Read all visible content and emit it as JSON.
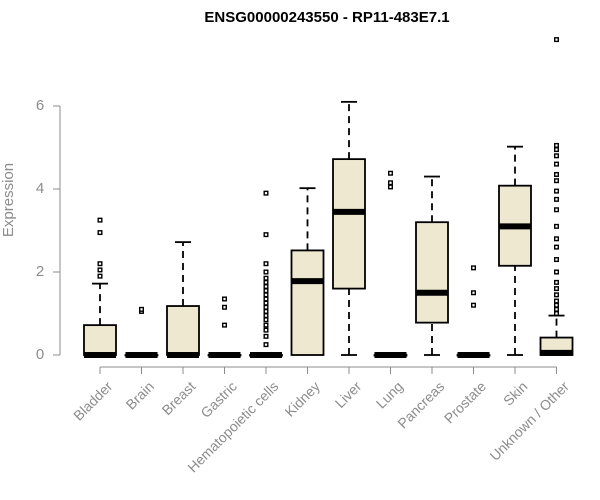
{
  "chart_data": {
    "type": "boxplot",
    "title": "ENSG00000243550 - RP11-483E7.1",
    "xlabel": "",
    "ylabel": "Expression",
    "ylim": [
      0,
      7.7
    ],
    "yticks": [
      0,
      2,
      4,
      6
    ],
    "box_fill": "#efe8d0",
    "box_stroke": "#000000",
    "categories": [
      "Bladder",
      "Brain",
      "Breast",
      "Gastric",
      "Hematopoietic cells",
      "Kidney",
      "Liver",
      "Lung",
      "Pancreas",
      "Prostate",
      "Skin",
      "Unknown / Other"
    ],
    "boxes": [
      {
        "q1": 0,
        "median": 0,
        "q3": 0.72,
        "whisker_low": 0,
        "whisker_high": 1.72,
        "outliers": [
          1.9,
          2.05,
          2.2,
          2.95,
          3.25
        ]
      },
      {
        "q1": 0,
        "median": 0,
        "q3": 0,
        "whisker_low": 0,
        "whisker_high": 0,
        "outliers": [
          1.05,
          1.1
        ]
      },
      {
        "q1": 0,
        "median": 0,
        "q3": 1.18,
        "whisker_low": 0,
        "whisker_high": 2.72,
        "outliers": []
      },
      {
        "q1": 0,
        "median": 0,
        "q3": 0,
        "whisker_low": 0,
        "whisker_high": 0,
        "outliers": [
          0.72,
          1.15,
          1.35
        ]
      },
      {
        "q1": 0,
        "median": 0,
        "q3": 0,
        "whisker_low": 0,
        "whisker_high": 0,
        "outliers": [
          0.25,
          0.45,
          0.6,
          0.72,
          0.85,
          0.95,
          1.05,
          1.15,
          1.25,
          1.35,
          1.45,
          1.55,
          1.65,
          1.75,
          1.85,
          2.0,
          2.2,
          2.9,
          3.9
        ]
      },
      {
        "q1": 0,
        "median": 1.78,
        "q3": 2.52,
        "whisker_low": 0,
        "whisker_high": 4.02,
        "outliers": []
      },
      {
        "q1": 1.6,
        "median": 3.45,
        "q3": 4.72,
        "whisker_low": 0,
        "whisker_high": 6.1,
        "outliers": []
      },
      {
        "q1": 0,
        "median": 0,
        "q3": 0,
        "whisker_low": 0,
        "whisker_high": 0,
        "outliers": [
          4.05,
          4.15,
          4.38
        ]
      },
      {
        "q1": 0.78,
        "median": 1.5,
        "q3": 3.2,
        "whisker_low": 0,
        "whisker_high": 4.3,
        "outliers": []
      },
      {
        "q1": 0,
        "median": 0,
        "q3": 0,
        "whisker_low": 0,
        "whisker_high": 0,
        "outliers": [
          1.2,
          1.5,
          2.1
        ]
      },
      {
        "q1": 2.15,
        "median": 3.1,
        "q3": 4.08,
        "whisker_low": 0,
        "whisker_high": 5.02,
        "outliers": []
      },
      {
        "q1": 0,
        "median": 0.05,
        "q3": 0.42,
        "whisker_low": 0,
        "whisker_high": 0.95,
        "outliers": [
          1.0,
          1.1,
          1.2,
          1.3,
          1.45,
          1.6,
          1.75,
          2.0,
          2.3,
          2.6,
          2.8,
          3.1,
          3.5,
          3.75,
          3.95,
          4.2,
          4.35,
          4.6,
          4.8,
          4.95,
          5.05,
          7.6
        ]
      }
    ]
  }
}
